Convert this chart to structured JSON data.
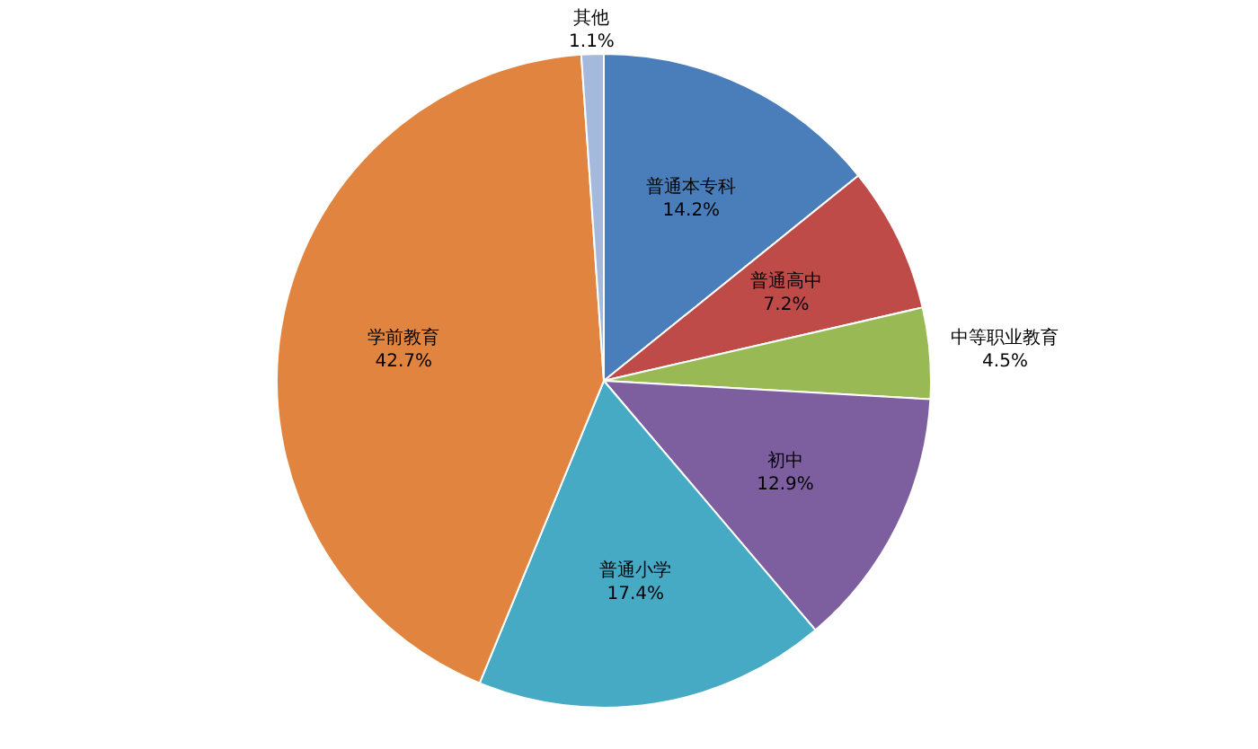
{
  "chart_data": {
    "type": "pie",
    "categories": [
      "普通本专科",
      "普通高中",
      "中等职业教育",
      "初中",
      "普通小学",
      "学前教育",
      "其他"
    ],
    "values": [
      14.2,
      7.2,
      4.5,
      12.9,
      17.4,
      42.7,
      1.1
    ],
    "value_labels": [
      "14.2%",
      "7.2%",
      "4.5%",
      "12.9%",
      "17.4%",
      "42.7%",
      "1.1%"
    ],
    "colors": [
      "#4a7ebb",
      "#be4b48",
      "#98b954",
      "#7d5fa0",
      "#46aac5",
      "#e0843f",
      "#a5b9dc"
    ]
  }
}
